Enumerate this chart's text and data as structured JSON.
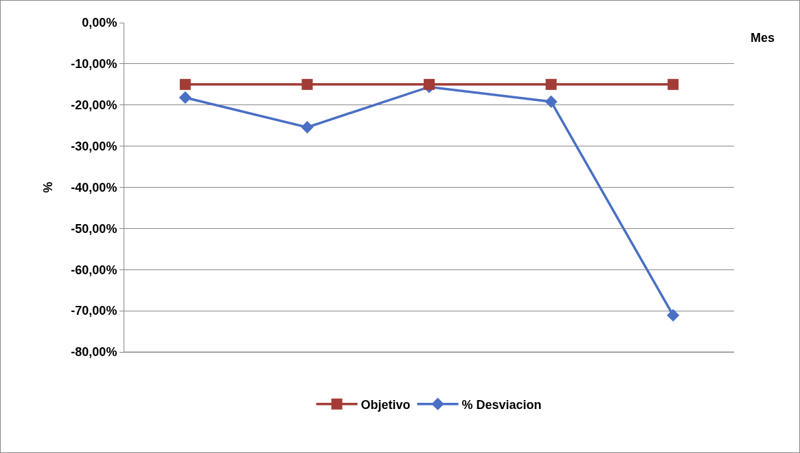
{
  "chart_data": {
    "type": "line",
    "xlabel": "Mes",
    "ylabel": "%",
    "categories": [
      null,
      null,
      null,
      null,
      null
    ],
    "series": [
      {
        "name": "Objetivo",
        "color": "#a33b36",
        "marker": "square",
        "values": [
          -15,
          -15,
          -15,
          -15,
          -15
        ]
      },
      {
        "name": "% Desviacion",
        "color": "#4a6fc4",
        "marker": "diamond",
        "values": [
          -18.2,
          -25.4,
          -15.6,
          -19.2,
          -71.1
        ]
      }
    ],
    "ylim": [
      -80,
      0
    ],
    "yticks": [
      {
        "value": 0,
        "label": "0,00%"
      },
      {
        "value": -10,
        "label": "-10,00%"
      },
      {
        "value": -20,
        "label": "-20,00%"
      },
      {
        "value": -30,
        "label": "-30,00%"
      },
      {
        "value": -40,
        "label": "-40,00%"
      },
      {
        "value": -50,
        "label": "-50,00%"
      },
      {
        "value": -60,
        "label": "-60,00%"
      },
      {
        "value": -70,
        "label": "-70,00%"
      },
      {
        "value": -80,
        "label": "-80,00%"
      }
    ],
    "grid": "y",
    "legend": "bottom",
    "line_style": "solid"
  }
}
